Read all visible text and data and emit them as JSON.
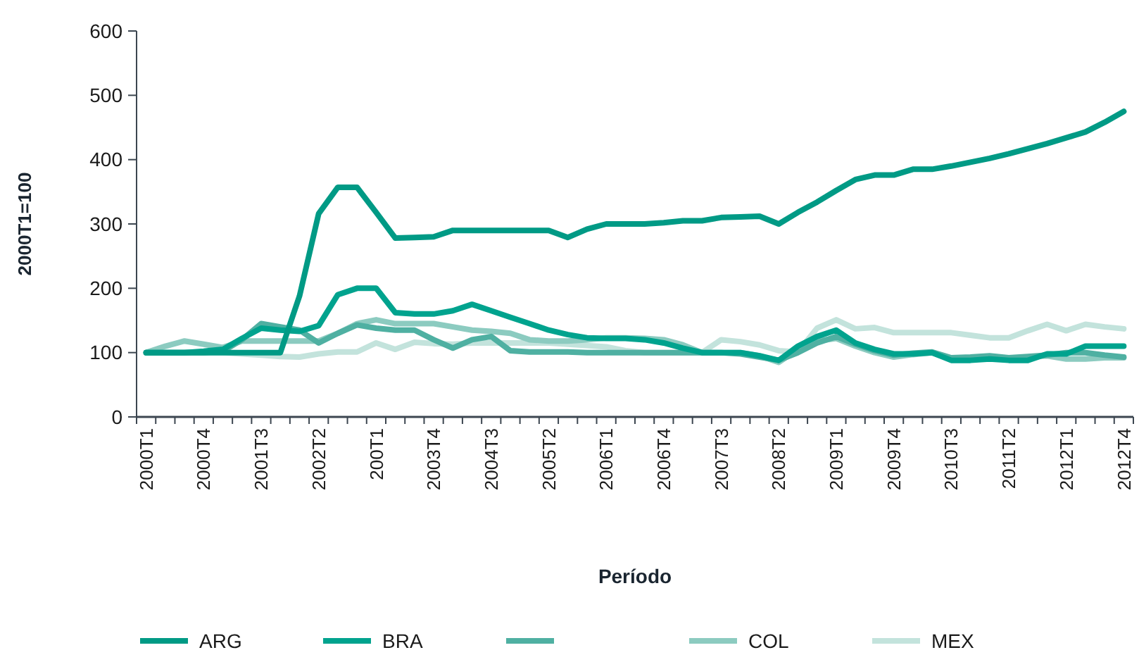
{
  "chart_data": {
    "type": "line",
    "xlabel": "Período",
    "ylabel": "2000T1=100",
    "categories": [
      "2000T1",
      null,
      null,
      "2000T4",
      null,
      null,
      "2001T3",
      null,
      null,
      "2002T2",
      null,
      null,
      "200T1",
      null,
      null,
      "2003T4",
      null,
      null,
      "2004T3",
      null,
      null,
      "2005T2",
      null,
      null,
      "2006T1",
      null,
      null,
      "2006T4",
      null,
      null,
      "2007T3",
      null,
      null,
      "2008T2",
      null,
      null,
      "2009T1",
      null,
      null,
      "2009T4",
      null,
      null,
      "2010T3",
      null,
      null,
      "2011T2",
      null,
      null,
      "2012T1",
      null,
      null,
      "2012T4"
    ],
    "ylim": [
      0,
      600
    ],
    "yticks": [
      0,
      100,
      200,
      300,
      400,
      500,
      600
    ],
    "grid": false,
    "legend": "bottom",
    "line_style": "solid",
    "marker": "none",
    "series": [
      {
        "name": "ARG",
        "color": "#009a85",
        "values": [
          100,
          100,
          100,
          100,
          100,
          100,
          100,
          100,
          188,
          316,
          357,
          357,
          318,
          278,
          279,
          280,
          290,
          290,
          290,
          290,
          290,
          290,
          279,
          292,
          300,
          300,
          300,
          302,
          305,
          305,
          310,
          311,
          312,
          300,
          318,
          334,
          352,
          369,
          376,
          376,
          385,
          385,
          390,
          396,
          402,
          409,
          417,
          425,
          434,
          443,
          458,
          475
        ]
      },
      {
        "name": "BRA",
        "color": "#00a38e",
        "values": [
          100,
          100,
          100,
          102,
          105,
          122,
          138,
          135,
          133,
          142,
          190,
          200,
          200,
          162,
          160,
          160,
          165,
          175,
          165,
          155,
          145,
          135,
          128,
          123,
          122,
          122,
          120,
          115,
          107,
          100,
          100,
          100,
          95,
          88,
          110,
          125,
          135,
          115,
          105,
          98,
          98,
          100,
          88,
          88,
          90,
          88,
          88,
          98,
          98,
          110,
          110,
          110
        ]
      },
      {
        "color": "#4fb0a2",
        "values": [
          100,
          100,
          100,
          100,
          102,
          120,
          145,
          140,
          135,
          115,
          130,
          143,
          138,
          135,
          135,
          120,
          107,
          120,
          125,
          103,
          101,
          101,
          101,
          100,
          100,
          100,
          100,
          100,
          100,
          100,
          100,
          98,
          93,
          88,
          100,
          115,
          125,
          113,
          103,
          96,
          99,
          101,
          92,
          93,
          95,
          92,
          94,
          96,
          100,
          100,
          96,
          93
        ]
      },
      {
        "name": "COL",
        "color": "#8ccbc0",
        "values": [
          100,
          110,
          118,
          113,
          108,
          118,
          118,
          118,
          118,
          118,
          130,
          145,
          151,
          145,
          145,
          145,
          140,
          135,
          133,
          130,
          120,
          118,
          118,
          120,
          123,
          123,
          122,
          120,
          112,
          100,
          100,
          100,
          95,
          85,
          105,
          118,
          122,
          110,
          100,
          93,
          97,
          100,
          90,
          92,
          93,
          90,
          93,
          95,
          90,
          90,
          92,
          92
        ]
      },
      {
        "name": "MEX",
        "color": "#c3e3dc",
        "values": [
          100,
          100,
          100,
          100,
          100,
          98,
          96,
          94,
          93,
          98,
          101,
          101,
          115,
          105,
          116,
          114,
          113,
          115,
          115,
          115,
          115,
          115,
          113,
          111,
          109,
          103,
          100,
          100,
          100,
          100,
          120,
          117,
          112,
          103,
          101,
          138,
          151,
          137,
          139,
          131,
          131,
          131,
          131,
          127,
          123,
          123,
          134,
          144,
          134,
          144,
          140,
          137
        ]
      }
    ]
  }
}
